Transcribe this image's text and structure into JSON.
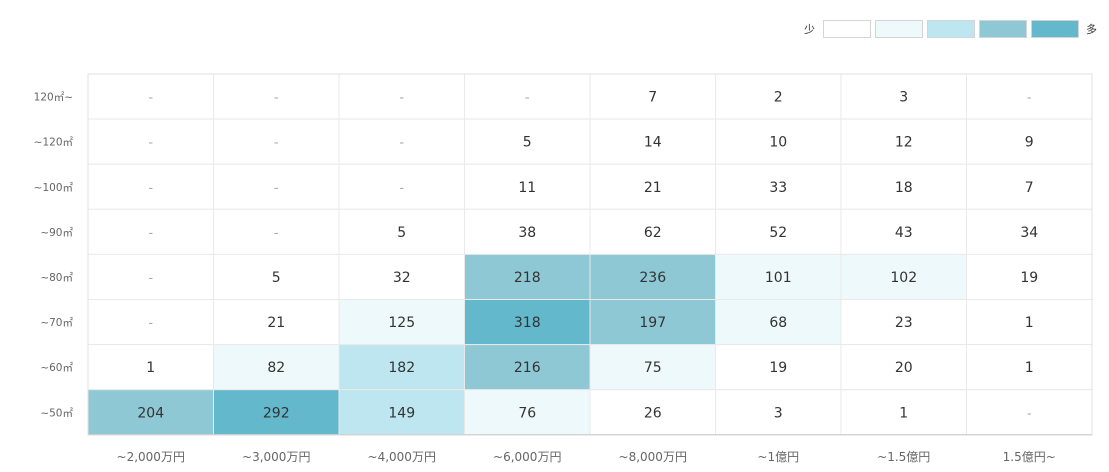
{
  "legend": {
    "low_label": "少",
    "high_label": "多",
    "colors": [
      "#ffffff",
      "#eef9fc",
      "#bde6f1",
      "#8fc8d5",
      "#63b8cc"
    ]
  },
  "chart_data": {
    "type": "heatmap",
    "x_categories": [
      "~2,000万円",
      "~3,000万円",
      "~4,000万円",
      "~6,000万円",
      "~8,000万円",
      "~1億円",
      "~1.5億円",
      "1.5億円~"
    ],
    "y_categories": [
      "120㎡~",
      "~120㎡",
      "~100㎡",
      "~90㎡",
      "~80㎡",
      "~70㎡",
      "~60㎡",
      "~50㎡"
    ],
    "values": [
      [
        null,
        null,
        null,
        null,
        7,
        2,
        3,
        null
      ],
      [
        null,
        null,
        null,
        5,
        14,
        10,
        12,
        9
      ],
      [
        null,
        null,
        null,
        11,
        21,
        33,
        18,
        7
      ],
      [
        null,
        null,
        5,
        38,
        62,
        52,
        43,
        34
      ],
      [
        null,
        5,
        32,
        218,
        236,
        101,
        102,
        19
      ],
      [
        null,
        21,
        125,
        318,
        197,
        68,
        23,
        1
      ],
      [
        1,
        82,
        182,
        216,
        75,
        19,
        20,
        1
      ],
      [
        204,
        292,
        149,
        76,
        26,
        3,
        1,
        null
      ]
    ],
    "color_levels": [
      [
        0,
        0,
        0,
        0,
        0,
        0,
        0,
        0
      ],
      [
        0,
        0,
        0,
        0,
        0,
        0,
        0,
        0
      ],
      [
        0,
        0,
        0,
        0,
        0,
        0,
        0,
        0
      ],
      [
        0,
        0,
        0,
        0,
        0,
        0,
        0,
        0
      ],
      [
        0,
        0,
        0,
        3,
        3,
        1,
        1,
        0
      ],
      [
        0,
        0,
        1,
        4,
        3,
        1,
        0,
        0
      ],
      [
        0,
        1,
        2,
        3,
        1,
        0,
        0,
        0
      ],
      [
        3,
        4,
        2,
        1,
        0,
        0,
        0,
        0
      ]
    ],
    "empty_symbol": "-"
  }
}
